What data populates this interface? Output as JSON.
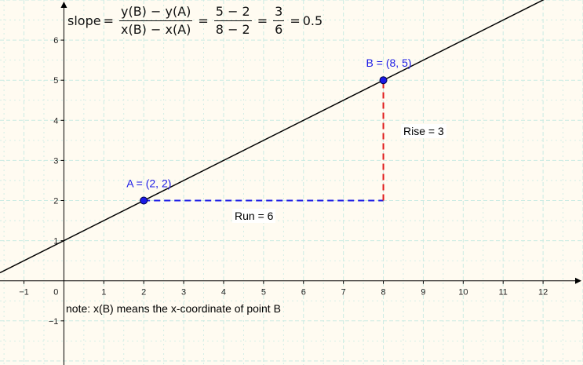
{
  "chart_data": {
    "type": "line",
    "title": "",
    "xlabel": "",
    "ylabel": "",
    "xlim": [
      -1.6,
      13.0
    ],
    "ylim": [
      -2.1,
      7.0
    ],
    "grid": true,
    "x_ticks": [
      -1,
      1,
      2,
      3,
      4,
      5,
      6,
      7,
      8,
      9,
      10,
      11,
      12
    ],
    "y_ticks": [
      -1,
      1,
      2,
      3,
      4,
      5,
      6
    ],
    "origin_label": "0",
    "series": [
      {
        "x": [
          -1.6,
          13.0
        ],
        "y": [
          0.2,
          7.5
        ]
      }
    ],
    "points": [
      {
        "name": "A",
        "label": "A = (2, 2)",
        "x": 2,
        "y": 2
      },
      {
        "name": "B",
        "label": "B = (8, 5)",
        "x": 8,
        "y": 5
      }
    ],
    "run_segment": {
      "x": [
        2,
        8
      ],
      "y": [
        2,
        2
      ],
      "label": "Run = 6"
    },
    "rise_segment": {
      "x": [
        8,
        8
      ],
      "y": [
        2,
        5
      ],
      "label": "Rise = 3"
    },
    "formula": {
      "prefix": "slope",
      "eq": "=",
      "f1_num": "y(B) − y(A)",
      "f1_den": "x(B) − x(A)",
      "f2_num": "5 − 2",
      "f2_den": "8 − 2",
      "f3_num": "3",
      "f3_den": "6",
      "result": "0.5"
    },
    "note": "note: x(B) means the x-coordinate of point B"
  },
  "colors": {
    "background": "#fffbf1",
    "grid": "#c9ebe3",
    "axis": "#000000",
    "line": "#000000",
    "point": "#1a1ae6",
    "run": "#1a1ae6",
    "rise": "#e01818",
    "point_label": "#1a1ae6"
  }
}
